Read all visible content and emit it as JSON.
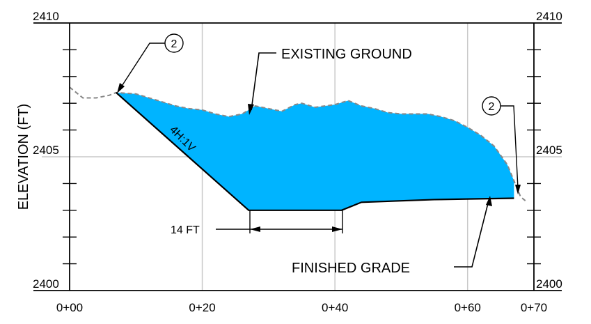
{
  "title": "",
  "colors": {
    "fill": "#00b4ff",
    "grid": "#c8c8c8",
    "existing_ground_line": "#888888",
    "frame": "#000000"
  },
  "axes": {
    "ylabel": "ELEVATION (FT)",
    "y_tick_labels_left": [
      "2410",
      "2405",
      "2400"
    ],
    "y_tick_labels_right": [
      "2410",
      "2405",
      "2400"
    ],
    "x_tick_labels": [
      "0+00",
      "0+20",
      "0+40",
      "0+60",
      "0+70"
    ]
  },
  "annotations": {
    "existing_ground": "EXISTING GROUND",
    "finished_grade": "FINISHED GRADE",
    "slope": "4H:1V",
    "bottom_width": "14 FT",
    "callout_left": "2",
    "callout_right": "2"
  },
  "chart_data": {
    "type": "area",
    "xlabel": "",
    "ylabel": "ELEVATION (FT)",
    "xlim": [
      0,
      70
    ],
    "ylim": [
      2400,
      2410
    ],
    "x_ticks": [
      "0+00",
      "0+20",
      "0+40",
      "0+60",
      "0+70"
    ],
    "y_ticks": [
      2400,
      2405,
      2410
    ],
    "grid": true,
    "existing_ground": {
      "x": [
        0,
        2,
        4,
        6,
        7,
        10,
        12,
        14,
        16,
        18,
        20,
        22,
        24,
        26,
        28,
        30,
        32,
        34,
        35,
        37,
        40,
        42,
        44,
        46,
        48,
        50,
        52,
        54,
        56,
        58,
        60,
        62,
        64,
        66,
        67,
        68,
        69
      ],
      "y": [
        2407.6,
        2407.2,
        2407.2,
        2407.3,
        2407.4,
        2407.35,
        2407.2,
        2407.05,
        2406.9,
        2406.8,
        2406.75,
        2406.6,
        2406.5,
        2406.6,
        2406.9,
        2406.8,
        2406.7,
        2406.95,
        2407.0,
        2406.85,
        2406.95,
        2407.1,
        2406.9,
        2406.8,
        2406.65,
        2406.6,
        2406.6,
        2406.6,
        2406.5,
        2406.35,
        2406.1,
        2405.8,
        2405.4,
        2404.7,
        2404.1,
        2403.5,
        2403.3
      ]
    },
    "finished_grade": {
      "x": [
        7,
        27,
        41,
        44,
        55,
        67
      ],
      "y": [
        2407.4,
        2403.0,
        2403.0,
        2403.3,
        2403.4,
        2403.45
      ]
    }
  }
}
